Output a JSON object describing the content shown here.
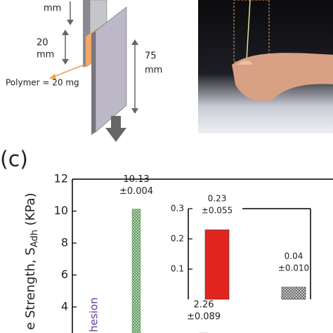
{
  "diagram": {
    "top_label": "mm",
    "gap_label": [
      "20",
      "mm"
    ],
    "length_label": [
      "75",
      "mm"
    ],
    "polymer_label": "Polymer = 20 mg"
  },
  "panel_label": "(c)",
  "chart_data": [
    {
      "type": "bar",
      "ylabel": [
        "e Strength, S",
        "Adh",
        " (KPa)"
      ],
      "annotation": "hesion",
      "categories": [
        null,
        null
      ],
      "values": [
        10.13,
        2.26
      ],
      "value_labels": [
        "10.13",
        "2.26"
      ],
      "errors": [
        0.004,
        0.089
      ],
      "error_labels": [
        "±0.004",
        "±0.089"
      ],
      "colors": [
        "#6aa36a",
        "#6aa36a"
      ],
      "ylim": [
        2.37,
        12
      ],
      "yticks": [
        4,
        6,
        8,
        10,
        12
      ]
    },
    {
      "type": "bar",
      "categories": [
        null,
        null
      ],
      "values": [
        0.23,
        0.04
      ],
      "value_labels": [
        "0.23",
        "0.04"
      ],
      "errors": [
        0.055,
        0.01
      ],
      "error_labels": [
        "±0.055",
        "±0.010"
      ],
      "colors": [
        "#e0261f",
        "#777777"
      ],
      "ylim": [
        0,
        0.3
      ],
      "yticks": [
        0.1,
        0.2,
        0.3
      ]
    }
  ]
}
